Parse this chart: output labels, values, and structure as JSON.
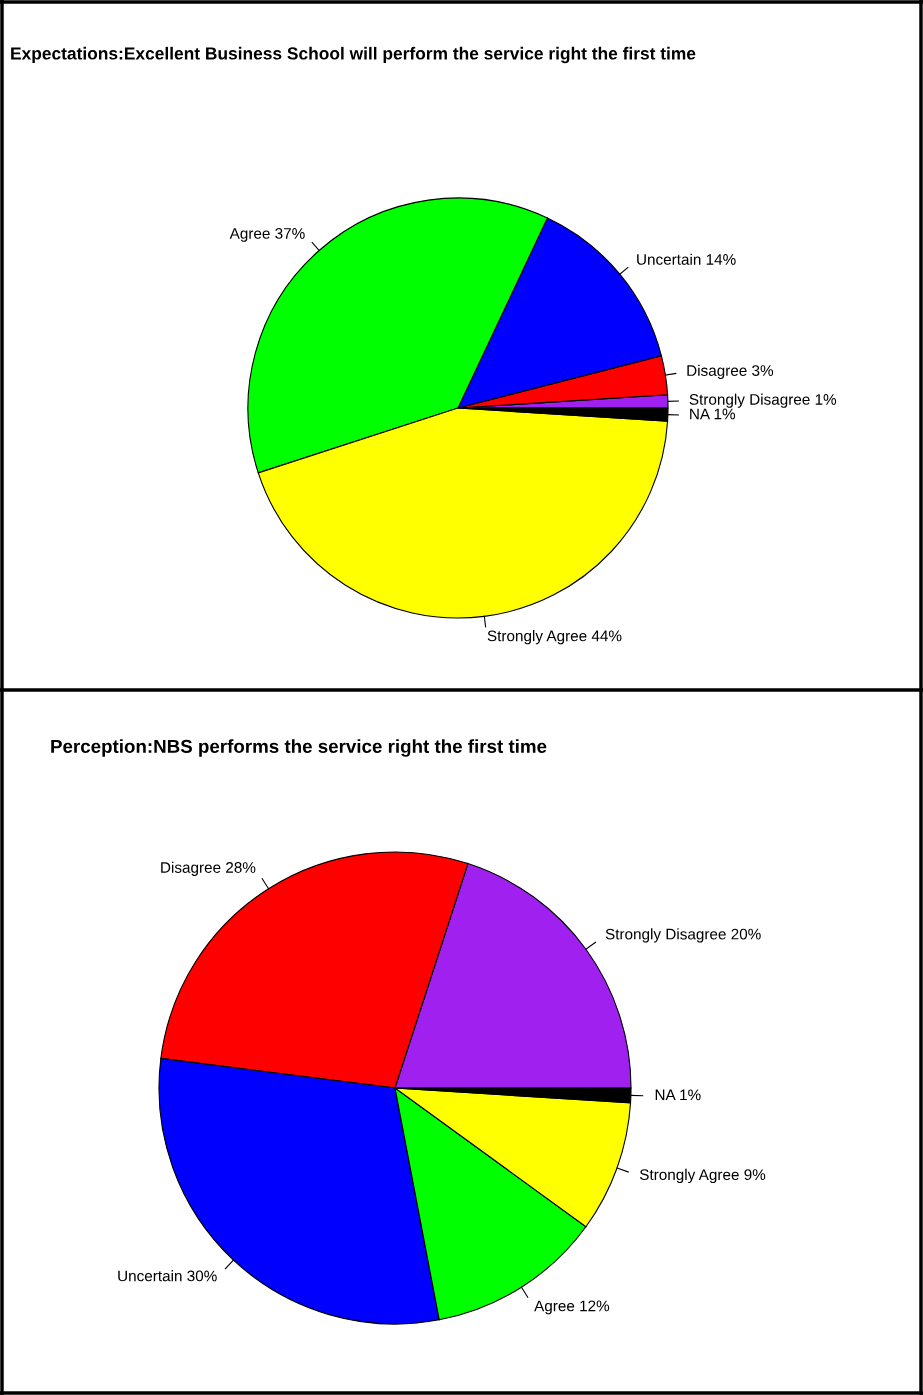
{
  "chart_data": [
    {
      "type": "pie",
      "title": "Expectations:Excellent Business School will perform the service right the first time",
      "categories": [
        "Strongly Disagree 1%",
        "Disagree 3%",
        "Uncertain 14%",
        "Agree 37%",
        "Strongly Agree 44%",
        "NA 1%"
      ],
      "values": [
        1,
        3,
        14,
        37,
        44,
        1
      ],
      "colors": [
        "#a020f0",
        "#ff0000",
        "#0000ff",
        "#00ff00",
        "#ffff00",
        "#000000"
      ]
    },
    {
      "type": "pie",
      "title": "Perception:NBS performs the service right the first time",
      "categories": [
        "Strongly Disagree 20%",
        "Disagree 28%",
        "Uncertain 30%",
        "Agree 12%",
        "Strongly Agree 9%",
        "NA 1%"
      ],
      "values": [
        20,
        28,
        30,
        12,
        9,
        1
      ],
      "colors": [
        "#a020f0",
        "#ff0000",
        "#0000ff",
        "#00ff00",
        "#ffff00",
        "#000000"
      ]
    }
  ]
}
